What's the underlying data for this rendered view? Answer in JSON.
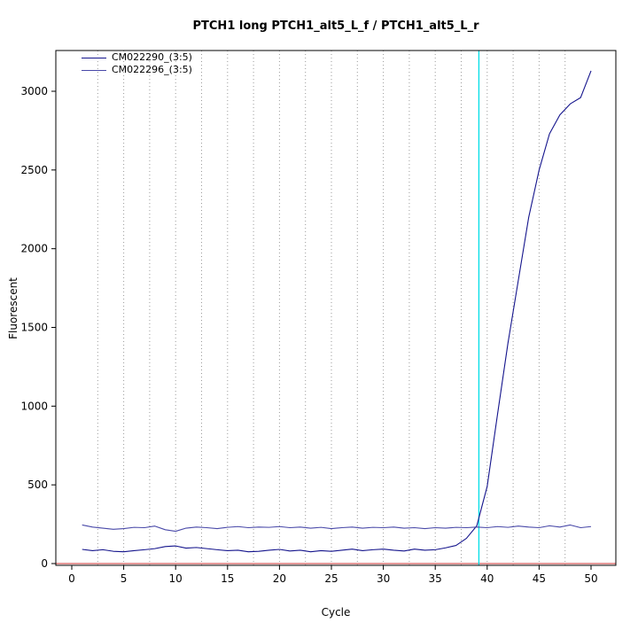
{
  "title": "PTCH1 long PTCH1_alt5_L_f / PTCH1_alt5_L_r",
  "chart_data": {
    "type": "line",
    "title": "PTCH1 long PTCH1_alt5_L_f / PTCH1_alt5_L_r",
    "xlabel": "Cycle",
    "ylabel": "Fluorescent",
    "xlim": [
      0,
      50
    ],
    "ylim": [
      -60,
      3260
    ],
    "xticks": [
      0,
      5,
      10,
      15,
      20,
      25,
      30,
      35,
      40,
      45,
      50
    ],
    "yticks": [
      0,
      500,
      1000,
      1500,
      2000,
      2500,
      3000
    ],
    "grid": {
      "vertical_step": 2.5,
      "color": "#9a9a9a",
      "style": "dotted"
    },
    "baseline_line": {
      "axis": "y",
      "value": 0,
      "color": "#cd3333"
    },
    "ct_line": {
      "axis": "x",
      "value": 39.2,
      "color": "#00dde6"
    },
    "legend_position": "top-left",
    "cycles": [
      1,
      2,
      3,
      4,
      5,
      6,
      7,
      8,
      9,
      10,
      11,
      12,
      13,
      14,
      15,
      16,
      17,
      18,
      19,
      20,
      21,
      22,
      23,
      24,
      25,
      26,
      27,
      28,
      29,
      30,
      31,
      32,
      33,
      34,
      35,
      36,
      37,
      38,
      39,
      40,
      41,
      42,
      43,
      44,
      45,
      46,
      47,
      48,
      49,
      50
    ],
    "series": [
      {
        "name": "CM022290_(3:5)",
        "color": "#14148c",
        "values": [
          90,
          82,
          88,
          78,
          75,
          82,
          88,
          95,
          108,
          112,
          98,
          102,
          95,
          88,
          82,
          85,
          75,
          78,
          85,
          90,
          80,
          85,
          75,
          82,
          78,
          85,
          92,
          82,
          88,
          92,
          85,
          80,
          92,
          85,
          88,
          100,
          115,
          160,
          240,
          490,
          950,
          1400,
          1800,
          2200,
          2500,
          2730,
          2850,
          2920,
          2960,
          3130
        ]
      },
      {
        "name": "CM022296_(3:5)",
        "color": "#4848a8",
        "values": [
          245,
          232,
          225,
          218,
          222,
          230,
          228,
          238,
          215,
          205,
          225,
          232,
          228,
          222,
          230,
          235,
          228,
          232,
          230,
          235,
          228,
          232,
          225,
          230,
          222,
          228,
          232,
          225,
          230,
          228,
          232,
          225,
          228,
          222,
          228,
          225,
          230,
          228,
          232,
          228,
          235,
          230,
          238,
          232,
          228,
          240,
          232,
          245,
          228,
          235
        ]
      }
    ]
  }
}
